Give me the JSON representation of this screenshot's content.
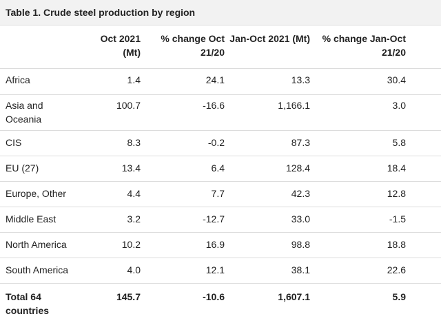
{
  "title": "Table 1. Crude steel production by region",
  "headers": {
    "region": "",
    "oct2021": "Oct 2021 (Mt)",
    "pct_oct": "% change Oct 21/20",
    "janoct2021": "Jan-Oct 2021 (Mt)",
    "pct_janoct": "% change Jan-Oct 21/20"
  },
  "rows": [
    {
      "region": "Africa",
      "oct2021": "1.4",
      "pct_oct": "24.1",
      "janoct2021": "13.3",
      "pct_janoct": "30.4"
    },
    {
      "region": "Asia and Oceania",
      "oct2021": "100.7",
      "pct_oct": "-16.6",
      "janoct2021": "1,166.1",
      "pct_janoct": "3.0"
    },
    {
      "region": "CIS",
      "oct2021": "8.3",
      "pct_oct": "-0.2",
      "janoct2021": "87.3",
      "pct_janoct": "5.8"
    },
    {
      "region": "EU (27)",
      "oct2021": "13.4",
      "pct_oct": "6.4",
      "janoct2021": "128.4",
      "pct_janoct": "18.4"
    },
    {
      "region": "Europe, Other",
      "oct2021": "4.4",
      "pct_oct": "7.7",
      "janoct2021": "42.3",
      "pct_janoct": "12.8"
    },
    {
      "region": "Middle East",
      "oct2021": "3.2",
      "pct_oct": "-12.7",
      "janoct2021": "33.0",
      "pct_janoct": "-1.5"
    },
    {
      "region": "North America",
      "oct2021": "10.2",
      "pct_oct": "16.9",
      "janoct2021": "98.8",
      "pct_janoct": "18.8"
    },
    {
      "region": "South America",
      "oct2021": "4.0",
      "pct_oct": "12.1",
      "janoct2021": "38.1",
      "pct_janoct": "22.6"
    }
  ],
  "total": {
    "region": "Total 64 countries",
    "oct2021": "145.7",
    "pct_oct": "-10.6",
    "janoct2021": "1,607.1",
    "pct_janoct": "5.9"
  }
}
